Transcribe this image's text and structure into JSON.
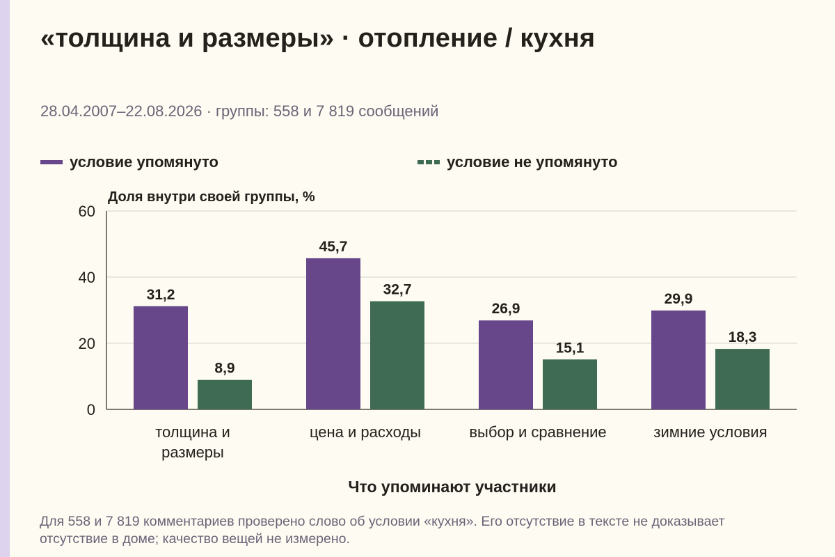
{
  "title": "«толщина и размеры» · отопление / кухня",
  "subtitle": "28.04.2007–22.08.2026 · группы: 558 и 7 819 сообщений",
  "legend": {
    "mentioned": "условие упомянуто",
    "not_mentioned": "условие не упомянуто"
  },
  "footnote": "Для 558 и 7 819 комментариев проверено слово об условии «кухня». Его отсутствие в тексте не доказывает отсутствие в доме; качество вещей не измерено.",
  "colors": {
    "mentioned": "#67478a",
    "not_mentioned": "#3f6b55",
    "background": "#fdfbf2",
    "accent_bar": "#ddd3ee"
  },
  "chart_data": {
    "type": "bar",
    "ylabel": "Доля внутри своей группы, %",
    "xlabel": "Что упоминают участники",
    "ylim": [
      0,
      60
    ],
    "yticks": [
      0,
      20,
      40,
      60
    ],
    "grid": true,
    "legend_position": "top",
    "categories": [
      [
        "толщина и",
        "размеры"
      ],
      [
        "цена и расходы"
      ],
      [
        "выбор и сравнение"
      ],
      [
        "зимние условия"
      ]
    ],
    "series": [
      {
        "name": "условие упомянуто",
        "values": [
          31.2,
          45.7,
          26.9,
          29.9
        ],
        "labels": [
          "31,2",
          "45,7",
          "26,9",
          "29,9"
        ]
      },
      {
        "name": "условие не упомянуто",
        "values": [
          8.9,
          32.7,
          15.1,
          18.3
        ],
        "labels": [
          "8,9",
          "32,7",
          "15,1",
          "18,3"
        ]
      }
    ]
  }
}
